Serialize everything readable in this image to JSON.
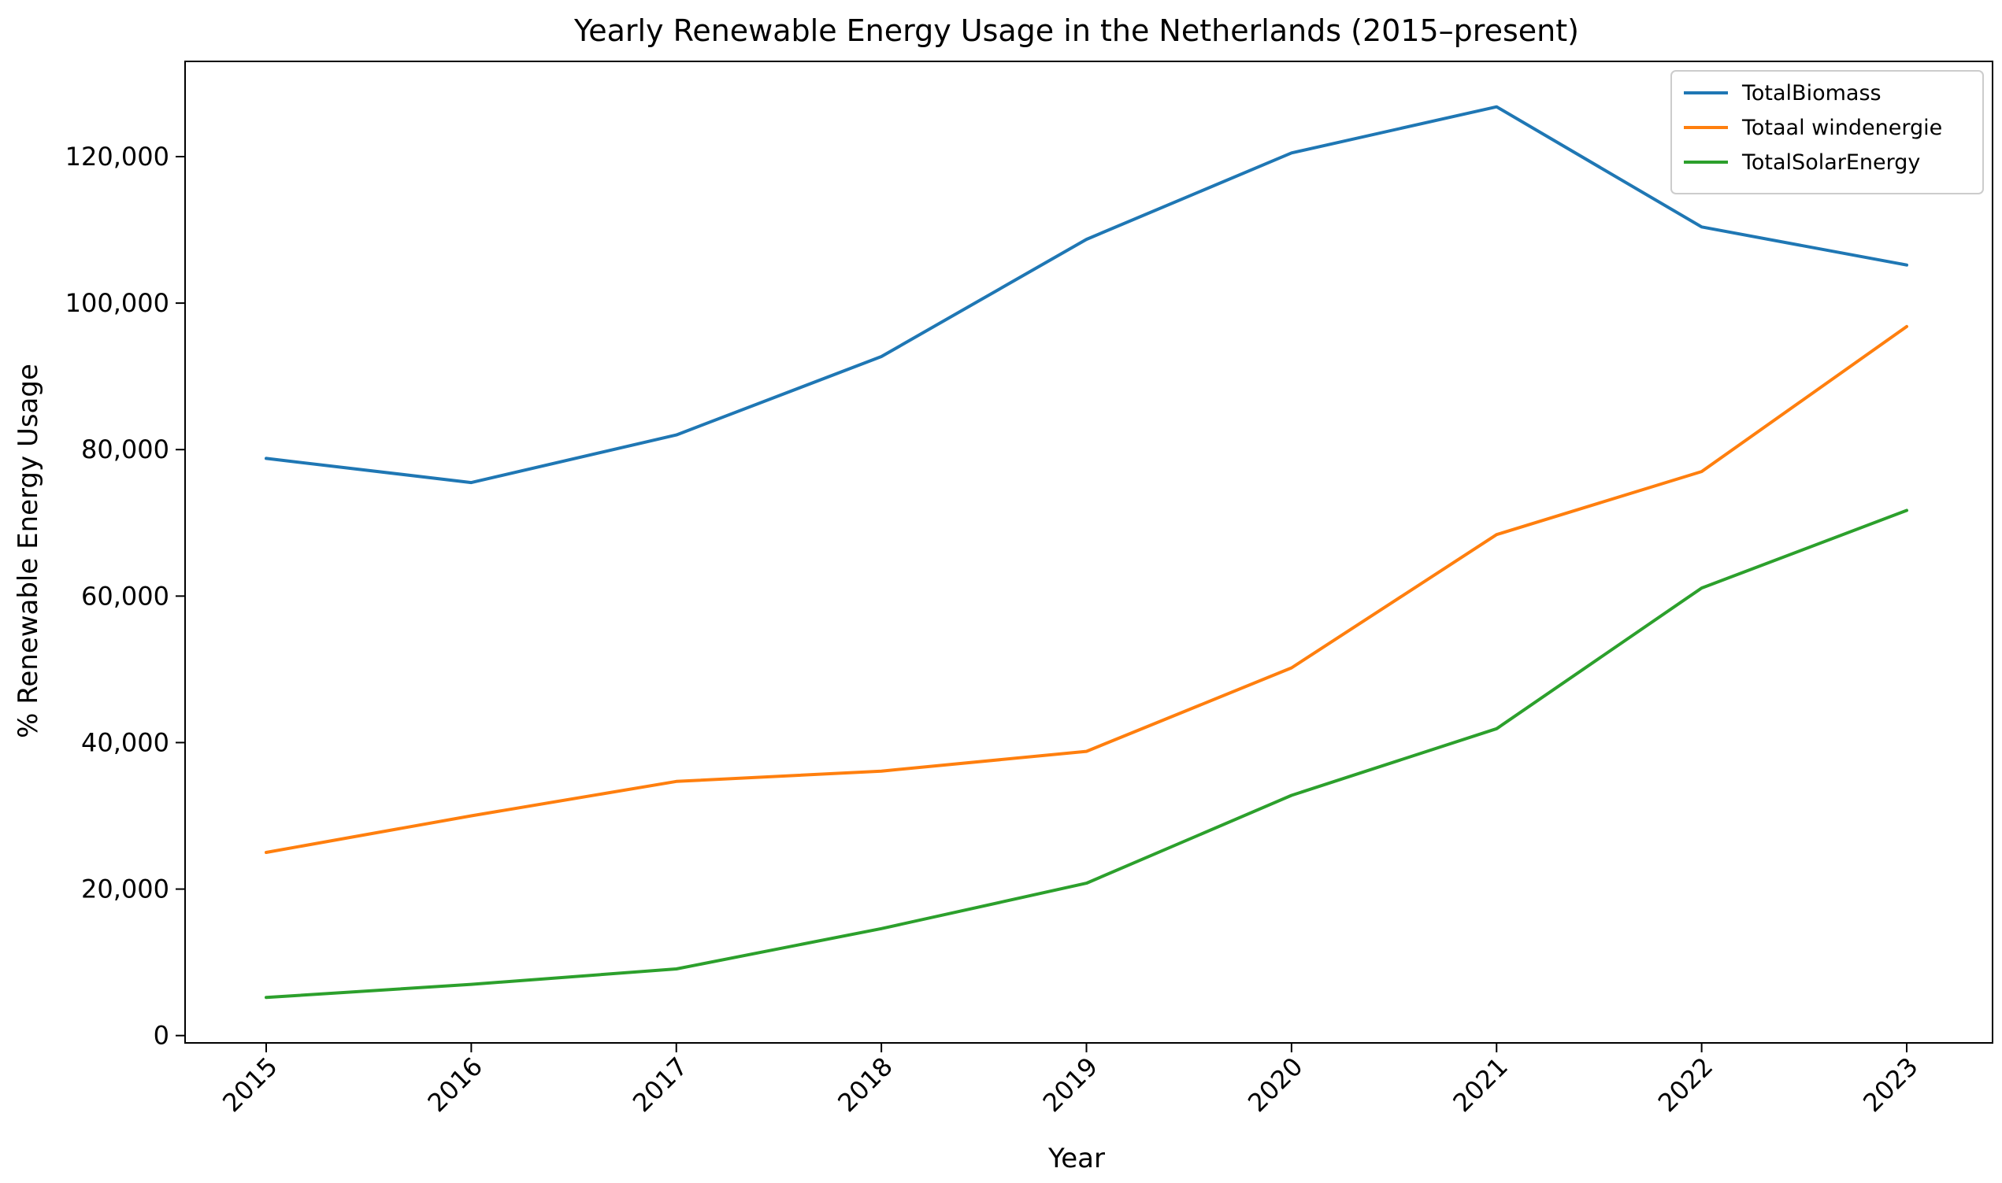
{
  "chart_data": {
    "type": "line",
    "title": "Yearly Renewable Energy Usage in the Netherlands (2015–present)",
    "xlabel": "Year",
    "ylabel": "% Renewable Energy Usage",
    "categories": [
      "2015",
      "2016",
      "2017",
      "2018",
      "2019",
      "2020",
      "2021",
      "2022",
      "2023"
    ],
    "ylim": [
      -1000,
      133000
    ],
    "yticks": [
      0,
      20000,
      40000,
      60000,
      80000,
      100000,
      120000
    ],
    "ytick_labels": [
      "0",
      "20,000",
      "40,000",
      "60,000",
      "80,000",
      "100,000",
      "120,000"
    ],
    "grid": false,
    "legend_position": "top-right",
    "series": [
      {
        "name": "TotalBiomass",
        "color": "#1f77b4",
        "values": [
          78800,
          75500,
          82000,
          92700,
          108700,
          120500,
          126800,
          110400,
          105200
        ]
      },
      {
        "name": "Totaal windenergie",
        "color": "#ff7f0e",
        "values": [
          25000,
          30000,
          34700,
          36100,
          38800,
          50200,
          68400,
          77000,
          96800
        ]
      },
      {
        "name": "TotalSolarEnergy",
        "color": "#2ca02c",
        "values": [
          5200,
          7000,
          9100,
          14600,
          20800,
          32800,
          41900,
          61100,
          71700
        ]
      }
    ]
  }
}
